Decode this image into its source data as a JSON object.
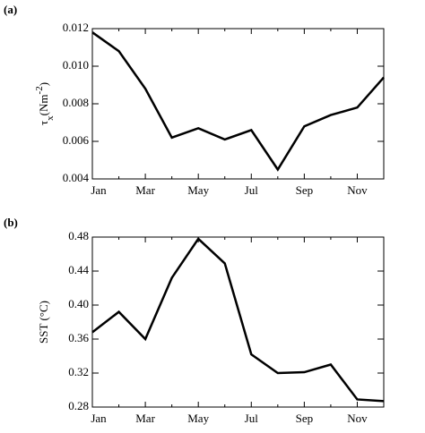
{
  "chart_data": [
    {
      "type": "line",
      "panel_label": "(a)",
      "y_label": [
        "τ",
        "x",
        "(Nm",
        "-2",
        ")"
      ],
      "categories": [
        "Jan",
        null,
        "Mar",
        null,
        "May",
        null,
        "Jul",
        null,
        "Sep",
        null,
        "Nov",
        null
      ],
      "series": [
        {
          "color": "#000000",
          "values": [
            0.0118,
            0.0108,
            0.0088,
            0.0062,
            0.0067,
            0.0061,
            0.0066,
            0.0045,
            0.0068,
            0.0074,
            0.0078,
            0.0094
          ]
        }
      ],
      "ylim": [
        0.004,
        0.012
      ],
      "yticks": [
        0.004,
        0.006,
        0.008,
        {
          "value": 0.01,
          "label": "0.010"
        },
        0.012
      ]
    },
    {
      "type": "line",
      "panel_label": "(b)",
      "y_label": [
        "SST (°C)"
      ],
      "categories": [
        "Jan",
        null,
        "Mar",
        null,
        "May",
        null,
        "Jul",
        null,
        "Sep",
        null,
        "Nov",
        null
      ],
      "series": [
        {
          "color": "#000000",
          "values": [
            0.368,
            0.392,
            0.36,
            0.432,
            0.478,
            0.449,
            0.342,
            0.32,
            0.321,
            0.33,
            0.289,
            0.287
          ]
        }
      ],
      "ylim": [
        0.28,
        0.48
      ],
      "yticks": [
        0.28,
        0.32,
        0.36,
        {
          "value": 0.4,
          "label": "0.40"
        },
        0.44,
        0.48
      ]
    }
  ]
}
